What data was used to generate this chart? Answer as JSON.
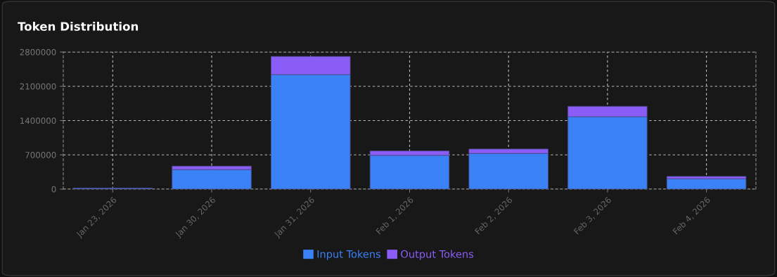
{
  "chart_data": {
    "type": "bar",
    "title": "Token Distribution",
    "stacked": true,
    "categories": [
      "Jan 23, 2026",
      "Jan 30, 2026",
      "Jan 31, 2026",
      "Feb 1, 2026",
      "Feb 2, 2026",
      "Feb 3, 2026",
      "Feb 4, 2026"
    ],
    "series": [
      {
        "name": "Input Tokens",
        "color": "#3b82f6",
        "values": [
          20000,
          400000,
          2340000,
          690000,
          730000,
          1480000,
          210000
        ]
      },
      {
        "name": "Output Tokens",
        "color": "#8b5cf6",
        "values": [
          null,
          70000,
          370000,
          90000,
          90000,
          210000,
          50000
        ]
      }
    ],
    "ylim": [
      0,
      2800000
    ],
    "yticks": [
      0,
      700000,
      1400000,
      2100000,
      2800000
    ],
    "grid": true,
    "legend": "bottom"
  }
}
